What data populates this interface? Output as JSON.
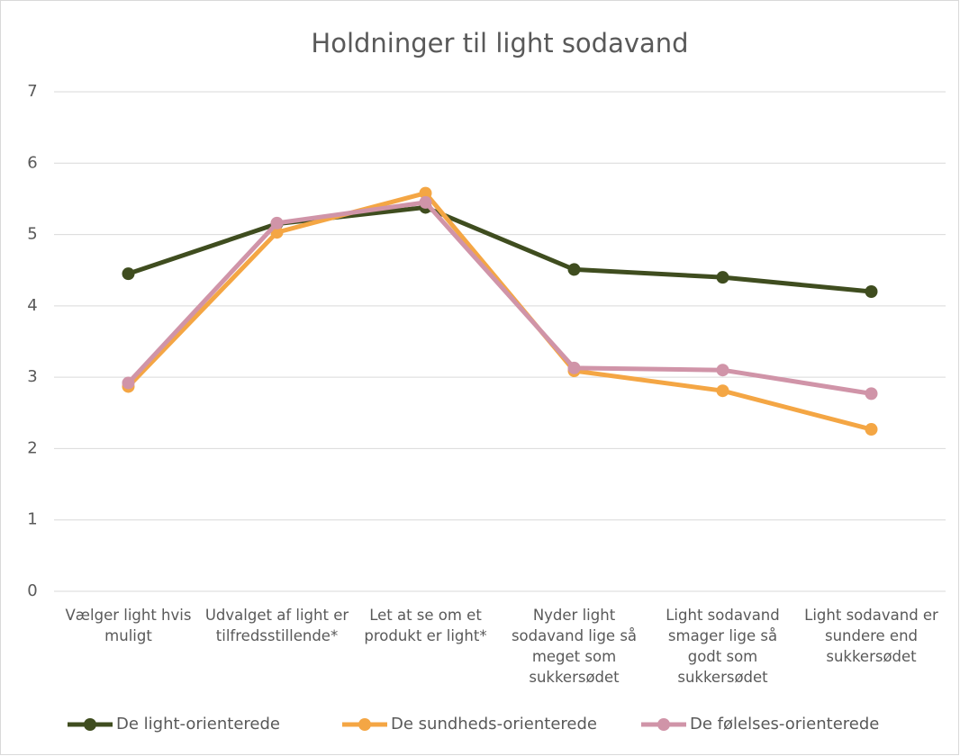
{
  "chart_data": {
    "type": "line",
    "title": "Holdninger til light sodavand",
    "categories": [
      "Vælger light hvis muligt",
      "Udvalget af light er tilfredsstillende*",
      "Let at se om et produkt er light*",
      "Nyder light sodavand lige så meget som sukkersødet",
      "Light sodavand smager lige så godt som sukkersødet",
      "Light sodavand er sundere end sukkersødet"
    ],
    "series": [
      {
        "name": "De light-orienterede",
        "color": "#3f4d1f",
        "values": [
          4.45,
          5.15,
          5.38,
          4.51,
          4.4,
          4.2
        ]
      },
      {
        "name": "De sundheds-orienterede",
        "color": "#f4a644",
        "values": [
          2.87,
          5.03,
          5.58,
          3.09,
          2.81,
          2.27
        ]
      },
      {
        "name": "De følelses-orienterede",
        "color": "#d094a8",
        "values": [
          2.92,
          5.16,
          5.45,
          3.13,
          3.1,
          2.77
        ]
      }
    ],
    "ylim": [
      0,
      7
    ],
    "yticks": [
      0,
      1,
      2,
      3,
      4,
      5,
      6,
      7
    ],
    "grid": true,
    "legend": "bottom"
  }
}
